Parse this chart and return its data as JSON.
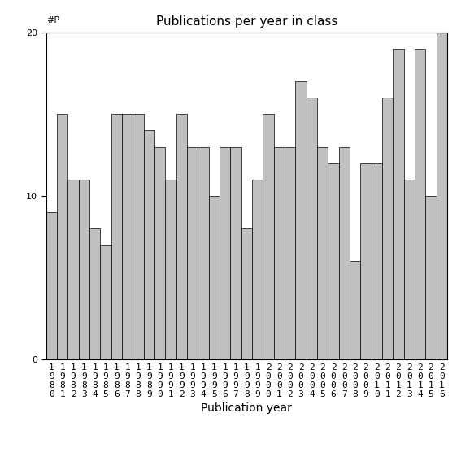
{
  "title": "Publications per year in class",
  "xlabel": "Publication year",
  "ylabel": "#P",
  "ylim": [
    0,
    20
  ],
  "yticks": [
    0,
    10,
    20
  ],
  "bar_color": "#c0c0c0",
  "bar_edgecolor": "#000000",
  "years": [
    1980,
    1981,
    1982,
    1983,
    1984,
    1985,
    1986,
    1987,
    1988,
    1989,
    1990,
    1991,
    1992,
    1993,
    1994,
    1995,
    1996,
    1997,
    1998,
    1999,
    2000,
    2001,
    2002,
    2003,
    2004,
    2005,
    2006,
    2007,
    2008,
    2009,
    2010,
    2011,
    2012,
    2013,
    2014,
    2015,
    2016
  ],
  "values": [
    9,
    15,
    11,
    11,
    8,
    7,
    15,
    15,
    15,
    14,
    13,
    11,
    15,
    13,
    13,
    10,
    13,
    13,
    8,
    11,
    15,
    13,
    13,
    17,
    16,
    13,
    12,
    13,
    6,
    12,
    12,
    16,
    19,
    11,
    19,
    10,
    20
  ],
  "bar_linewidth": 0.5,
  "tick_fontsize": 8,
  "xlabel_fontsize": 10,
  "title_fontsize": 11
}
